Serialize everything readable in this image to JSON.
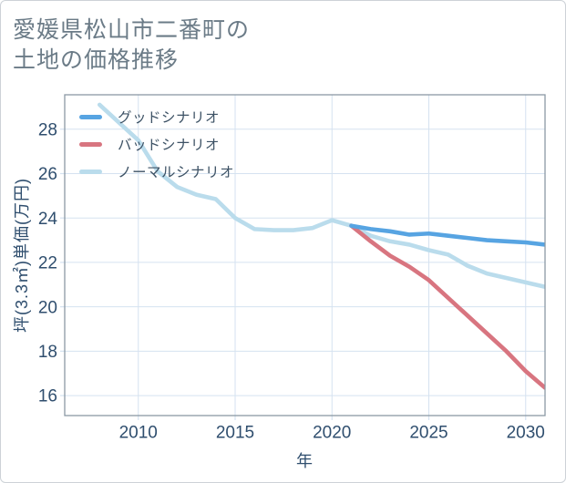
{
  "chart_data": {
    "type": "line",
    "title": "愛媛県松山市二番町の土地の価格推移",
    "title_lines": [
      "愛媛県松山市二番町の",
      "土地の価格推移"
    ],
    "xlabel": "年",
    "ylabel": "坪(3.3㎡)単価(万円)",
    "xlim": [
      2006.2,
      2031.0
    ],
    "ylim": [
      15.1,
      29.55
    ],
    "x_ticks": [
      2010,
      2015,
      2020,
      2025,
      2030
    ],
    "y_ticks": [
      16,
      18,
      20,
      22,
      24,
      26,
      28
    ],
    "grid": true,
    "legend_position": "top-left",
    "years": [
      2008,
      2009,
      2010,
      2011,
      2012,
      2013,
      2014,
      2015,
      2016,
      2017,
      2018,
      2019,
      2020,
      2021,
      2022,
      2023,
      2024,
      2025,
      2026,
      2027,
      2028,
      2029,
      2030,
      2031
    ],
    "series": [
      {
        "key": "good",
        "name": "グッドシナリオ",
        "color": "#57a4e2",
        "values": [
          null,
          null,
          null,
          null,
          null,
          null,
          null,
          null,
          null,
          null,
          null,
          null,
          null,
          23.65,
          23.5,
          23.4,
          23.25,
          23.3,
          23.2,
          23.1,
          23.0,
          22.95,
          22.9,
          22.8
        ]
      },
      {
        "key": "bad",
        "name": "バッドシナリオ",
        "color": "#d87580",
        "values": [
          null,
          null,
          null,
          null,
          null,
          null,
          null,
          null,
          null,
          null,
          null,
          null,
          null,
          23.65,
          22.95,
          22.3,
          21.8,
          21.2,
          20.4,
          19.6,
          18.8,
          18.0,
          17.1,
          16.35
        ]
      },
      {
        "key": "normal",
        "name": "ノーマルシナリオ",
        "color": "#badcec",
        "values": [
          29.1,
          28.3,
          27.5,
          26.1,
          25.4,
          25.05,
          24.85,
          24.0,
          23.5,
          23.45,
          23.45,
          23.55,
          23.9,
          23.65,
          23.2,
          22.95,
          22.8,
          22.55,
          22.35,
          21.85,
          21.5,
          21.3,
          21.1,
          20.9
        ]
      }
    ],
    "colors": {
      "grid": "#d5e2f0",
      "plot_border": "#8b99a5",
      "tick_text": "#2f4e6e",
      "title_text": "#6b7b87",
      "legend_text": "#3d5265",
      "background": "#ffffff"
    }
  }
}
